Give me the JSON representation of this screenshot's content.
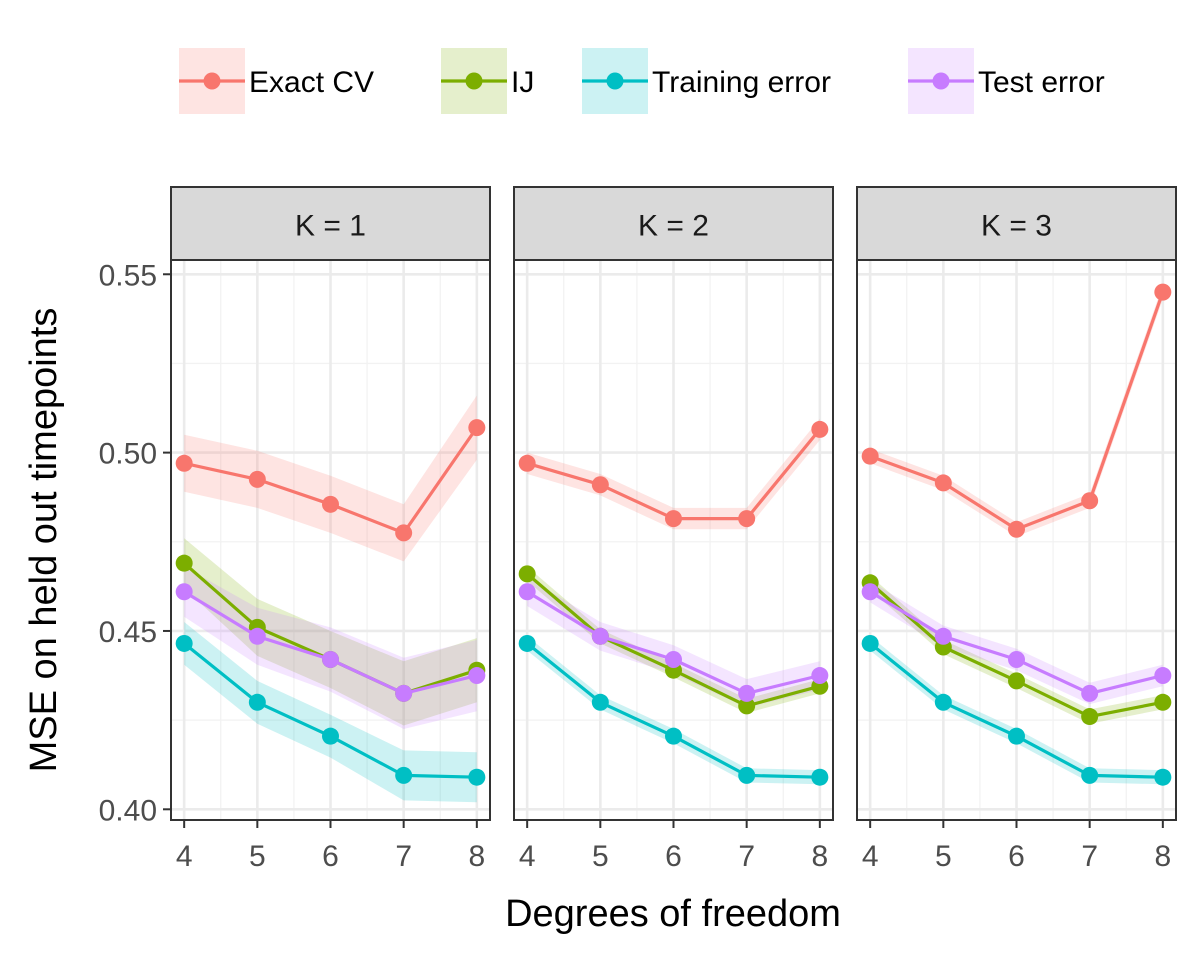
{
  "chart_data": {
    "type": "line",
    "xlabel": "Degrees of freedom",
    "ylabel": "MSE on held out timepoints",
    "x": [
      4,
      5,
      6,
      7,
      8
    ],
    "xlim": [
      3.82,
      8.18
    ],
    "ylim": [
      0.397,
      0.554
    ],
    "y_ticks": [
      0.4,
      0.45,
      0.5,
      0.55
    ],
    "y_tick_labels": [
      "0.40",
      "0.45",
      "0.50",
      "0.55"
    ],
    "x_tick_labels": [
      "4",
      "5",
      "6",
      "7",
      "8"
    ],
    "grid": true,
    "legend_position": "top",
    "legend": [
      {
        "name": "Exact CV",
        "color": "#F8766D"
      },
      {
        "name": "IJ",
        "color": "#7CAE00"
      },
      {
        "name": "Training error",
        "color": "#00BFC4"
      },
      {
        "name": "Test error",
        "color": "#C77CFF"
      }
    ],
    "panels": [
      {
        "label": "K = 1",
        "series": [
          {
            "name": "Exact CV",
            "color": "#F8766D",
            "values": [
              0.497,
              0.4925,
              0.4855,
              0.4775,
              0.507
            ],
            "band": [
              0.008,
              0.008,
              0.008,
              0.008,
              0.009
            ]
          },
          {
            "name": "IJ",
            "color": "#7CAE00",
            "values": [
              0.469,
              0.451,
              0.442,
              0.4325,
              0.439
            ],
            "band": [
              0.007,
              0.008,
              0.008,
              0.009,
              0.009
            ]
          },
          {
            "name": "Training error",
            "color": "#00BFC4",
            "values": [
              0.4465,
              0.43,
              0.4205,
              0.4095,
              0.409
            ],
            "band": [
              0.006,
              0.006,
              0.006,
              0.007,
              0.007
            ]
          },
          {
            "name": "Test error",
            "color": "#C77CFF",
            "values": [
              0.461,
              0.4485,
              0.442,
              0.4325,
              0.4375
            ],
            "band": [
              0.007,
              0.008,
              0.009,
              0.01,
              0.01
            ]
          }
        ]
      },
      {
        "label": "K = 2",
        "series": [
          {
            "name": "Exact CV",
            "color": "#F8766D",
            "values": [
              0.497,
              0.491,
              0.4815,
              0.4815,
              0.5065
            ],
            "band": [
              0.003,
              0.003,
              0.003,
              0.003,
              0.003
            ]
          },
          {
            "name": "IJ",
            "color": "#7CAE00",
            "values": [
              0.466,
              0.4485,
              0.439,
              0.429,
              0.4345
            ],
            "band": [
              0.002,
              0.002,
              0.002,
              0.002,
              0.002
            ]
          },
          {
            "name": "Training error",
            "color": "#00BFC4",
            "values": [
              0.4465,
              0.43,
              0.4205,
              0.4095,
              0.409
            ],
            "band": [
              0.002,
              0.002,
              0.002,
              0.002,
              0.002
            ]
          },
          {
            "name": "Test error",
            "color": "#C77CFF",
            "values": [
              0.461,
              0.4485,
              0.442,
              0.4325,
              0.4375
            ],
            "band": [
              0.004,
              0.004,
              0.004,
              0.004,
              0.004
            ]
          }
        ]
      },
      {
        "label": "K = 3",
        "series": [
          {
            "name": "Exact CV",
            "color": "#F8766D",
            "values": [
              0.499,
              0.4915,
              0.4785,
              0.4865,
              0.545
            ],
            "band": [
              0.002,
              0.002,
              0.002,
              0.002,
              0.002
            ]
          },
          {
            "name": "IJ",
            "color": "#7CAE00",
            "values": [
              0.4635,
              0.4455,
              0.436,
              0.426,
              0.43
            ],
            "band": [
              0.002,
              0.002,
              0.002,
              0.002,
              0.002
            ]
          },
          {
            "name": "Training error",
            "color": "#00BFC4",
            "values": [
              0.4465,
              0.43,
              0.4205,
              0.4095,
              0.409
            ],
            "band": [
              0.002,
              0.002,
              0.002,
              0.002,
              0.002
            ]
          },
          {
            "name": "Test error",
            "color": "#C77CFF",
            "values": [
              0.461,
              0.4485,
              0.442,
              0.4325,
              0.4375
            ],
            "band": [
              0.003,
              0.003,
              0.003,
              0.003,
              0.003
            ]
          }
        ]
      }
    ]
  }
}
